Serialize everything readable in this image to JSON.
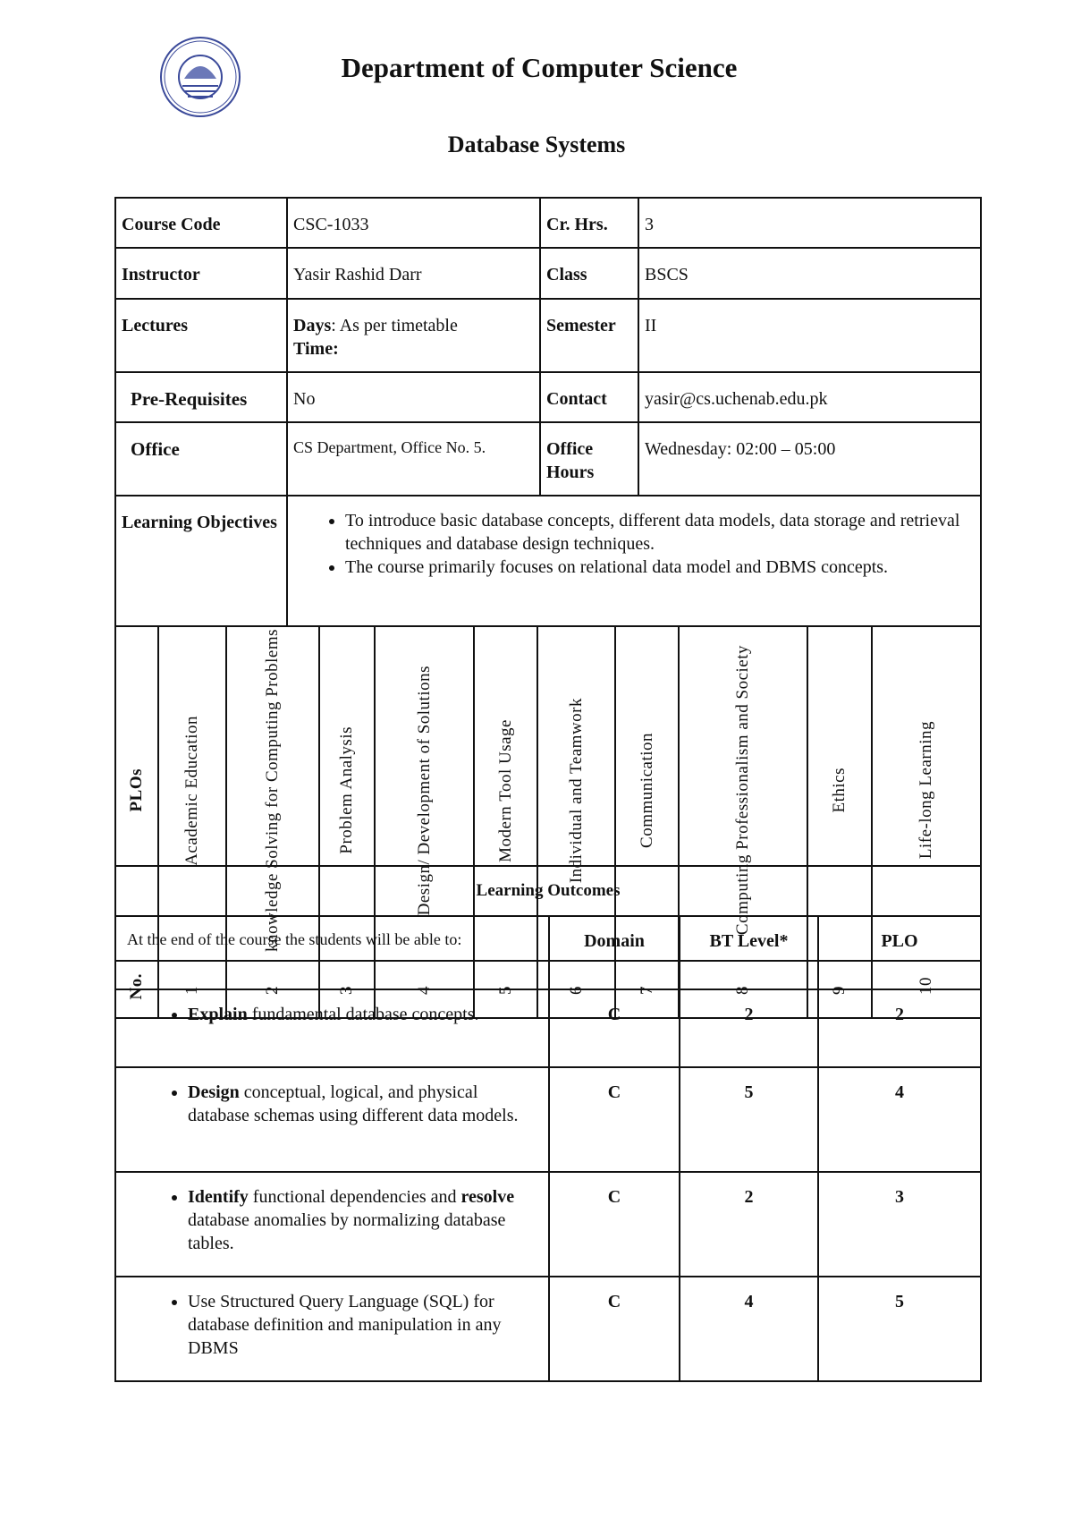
{
  "header": {
    "logo_text": "UNIVERSITY OF CHENAB",
    "department": "Department of Computer Science",
    "course_title": "Database Systems"
  },
  "info": {
    "course_code_label": "Course Code",
    "course_code": "CSC-1033",
    "cr_hrs_label": "Cr. Hrs.",
    "cr_hrs": "3",
    "instructor_label": "Instructor",
    "instructor": "Yasir Rashid Darr",
    "class_label": "Class",
    "class": "BSCS",
    "lectures_label": "Lectures",
    "days_label": "Days",
    "days": ": As per timetable",
    "time_label": "Time:",
    "semester_label": "Semester",
    "semester": "II",
    "prereq_label": "Pre-Requisites",
    "prereq": "No",
    "contact_label": "Contact",
    "contact": "yasir@cs.uchenab.edu.pk",
    "office_label": "Office",
    "office": "CS Department, Office No. 5.",
    "office_hours_label": "Office Hours",
    "office_hours": "Wednesday: 02:00 – 05:00",
    "objectives_label": "Learning Objectives",
    "objectives": [
      "To introduce basic database concepts, different data models, data storage and retrieval techniques and database design techniques.",
      "The course primarily focuses on relational data model and DBMS concepts."
    ]
  },
  "plos": {
    "header_label": "PLOs",
    "no_label": "No.",
    "items": [
      {
        "name": "Academic Education",
        "no": "1"
      },
      {
        "name": "knowledge Solving for Computing Problems",
        "no": "2"
      },
      {
        "name": "Problem Analysis",
        "no": "3"
      },
      {
        "name": "Design/ Development of Solutions",
        "no": "4"
      },
      {
        "name": "Modern Tool Usage",
        "no": "5"
      },
      {
        "name": "Individual and Teamwork",
        "no": "6"
      },
      {
        "name": "Communication",
        "no": "7"
      },
      {
        "name": "Computing Professionalism and Society",
        "no": "8"
      },
      {
        "name": "Ethics",
        "no": "9"
      },
      {
        "name": "Life-long Learning",
        "no": "10"
      }
    ]
  },
  "outcomes": {
    "title": "Learning Outcomes",
    "intro": "At the end of the course the students will be able to:",
    "domain_label": "Domain",
    "bt_label": "BT Level*",
    "plo_label": "PLO",
    "rows": [
      {
        "bold": "Explain",
        "text": " fundamental database concepts.",
        "domain": "C",
        "bt": "2",
        "plo": "2"
      },
      {
        "bold": "Design",
        "text": " conceptual, logical, and physical database schemas using different data models.",
        "domain": "C",
        "bt": "5",
        "plo": "4"
      },
      {
        "bold": "Identify",
        "text": " functional dependencies and ",
        "bold2": "resolve",
        "text2": " database anomalies by normalizing database tables.",
        "domain": "C",
        "bt": "2",
        "plo": "3"
      },
      {
        "bold": "",
        "text": "Use Structured Query Language (SQL) for database definition and manipulation in any DBMS",
        "domain": "C",
        "bt": "4",
        "plo": "5"
      }
    ]
  }
}
